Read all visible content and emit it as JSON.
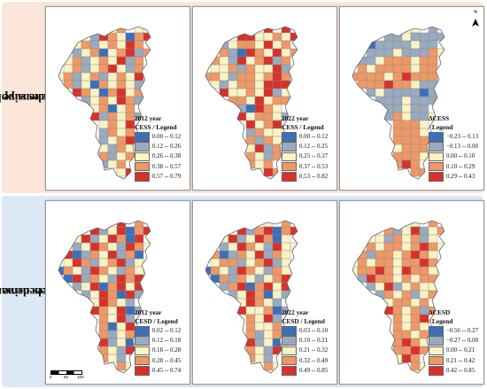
{
  "rows": [
    {
      "label_line1": "Comprehensive ecosystem",
      "label_line2": "services supply"
    },
    {
      "label_line1": "Comprehensive ecosystem",
      "label_line2": "services demand"
    }
  ],
  "panels": [
    {
      "legend_line1": "2012 year",
      "legend_line2": "CESS / Legend",
      "ranges": [
        "0.00 -- 0.12",
        "0.12 -- 0.26",
        "0.26 -- 0.38",
        "0.38 -- 0.57",
        "0.57 -- 0.79"
      ],
      "colors": [
        "#3a6fbd",
        "#9aaabf",
        "#fbf3c4",
        "#ef9866",
        "#d93129"
      ],
      "classes": [
        3,
        2,
        1,
        4,
        3,
        2,
        0,
        3,
        4,
        2,
        3,
        1,
        2,
        3,
        2,
        4,
        3,
        1,
        2,
        3,
        0,
        2,
        3,
        4,
        1,
        3,
        2,
        3,
        1,
        2,
        3,
        2,
        4,
        1,
        3,
        2,
        3,
        1,
        2,
        3,
        4,
        2,
        1,
        3,
        2,
        3,
        1,
        2,
        3,
        1,
        2,
        3,
        2,
        4,
        3,
        1,
        2,
        0,
        3,
        2
      ]
    },
    {
      "legend_line1": "2022 year",
      "legend_line2": "CESS / Legend",
      "ranges": [
        "0.00 -- 0.12",
        "0.12 -- 0.25",
        "0.25 -- 0.37",
        "0.37 -- 0.53",
        "0.53 -- 0.82"
      ],
      "colors": [
        "#3a6fbd",
        "#9aaabf",
        "#fbf3c4",
        "#ef9866",
        "#d93129"
      ],
      "classes": [
        4,
        4,
        4,
        4,
        2,
        2,
        3,
        2,
        4,
        1,
        2,
        3,
        3,
        2,
        4,
        2,
        3,
        3,
        1,
        0,
        4,
        3,
        2,
        4,
        2,
        3,
        3,
        2,
        1,
        4,
        2,
        3,
        4,
        1,
        3,
        2,
        2,
        3,
        1,
        3,
        2,
        2,
        4,
        1,
        3,
        3,
        2,
        1,
        3,
        3,
        2,
        3,
        4,
        3,
        2,
        1,
        2,
        3,
        3,
        2
      ]
    },
    {
      "legend_line1": "ΔCESS",
      "legend_line2": "/ Legend",
      "ranges": [
        "−0.23 -- 0.13",
        "−0.13 -- 0.00",
        "0.00 -- 0.10",
        "0.10 -- 0.29",
        "0.29 -- 0.43"
      ],
      "colors": [
        "#3a6fbd",
        "#9aaabf",
        "#fbf3c4",
        "#ef9866",
        "#d93129"
      ],
      "classes": [
        2,
        1,
        1,
        1,
        2,
        1,
        1,
        1,
        1,
        0,
        1,
        1,
        1,
        1,
        2,
        1,
        1,
        1,
        1,
        1,
        2,
        1,
        1,
        1,
        3,
        2,
        1,
        1,
        2,
        3,
        3,
        3,
        2,
        3,
        3,
        3,
        2,
        3,
        3,
        3,
        3,
        2,
        3,
        3,
        3,
        3,
        3,
        3,
        2,
        3,
        4,
        3,
        3,
        3,
        3,
        3,
        3,
        4,
        3,
        3
      ]
    },
    {
      "legend_line1": "2012 year",
      "legend_line2": "CESD / Legend",
      "ranges": [
        "0.02 -- 0.12",
        "0.12 -- 0.18",
        "0.18 -- 0.28",
        "0.28 -- 0.45",
        "0.45 -- 0.74"
      ],
      "colors": [
        "#3a6fbd",
        "#9aaabf",
        "#fbf3c4",
        "#ef9866",
        "#d93129"
      ],
      "classes": [
        4,
        3,
        4,
        1,
        2,
        4,
        0,
        3,
        4,
        2,
        4,
        1,
        2,
        4,
        3,
        0,
        4,
        1,
        2,
        4,
        3,
        2,
        1,
        4,
        3,
        2,
        4,
        0,
        1,
        3,
        2,
        4,
        1,
        3,
        0,
        2,
        4,
        3,
        1,
        2,
        3,
        4,
        1,
        2,
        0,
        3,
        2,
        1,
        4,
        3,
        2,
        1,
        3,
        2,
        0,
        4,
        1,
        3,
        2,
        1
      ]
    },
    {
      "legend_line1": "2022 year",
      "legend_line2": "CESD / Legend",
      "ranges": [
        "0.03 -- 0.10",
        "0.10 -- 0.21",
        "0.21 -- 0.32",
        "0.32 -- 0.49",
        "0.49 -- 0.85"
      ],
      "colors": [
        "#3a6fbd",
        "#9aaabf",
        "#fbf3c4",
        "#ef9866",
        "#d93129"
      ],
      "classes": [
        2,
        3,
        4,
        1,
        3,
        4,
        0,
        3,
        4,
        2,
        4,
        1,
        2,
        4,
        3,
        0,
        2,
        1,
        2,
        4,
        3,
        2,
        1,
        4,
        2,
        2,
        3,
        0,
        1,
        3,
        2,
        4,
        1,
        3,
        2,
        2,
        3,
        3,
        1,
        2,
        3,
        4,
        1,
        2,
        0,
        3,
        2,
        1,
        4,
        3,
        2,
        1,
        3,
        2,
        0,
        3,
        1,
        3,
        2,
        1
      ]
    },
    {
      "legend_line1": "ΔCESD",
      "legend_line2": "/ Legend",
      "ranges": [
        "−0.56 -- 0.27",
        "−0.27 -- 0.00",
        "0.00 -- 0.21",
        "0.21 -- 0.42",
        "0.42 -- 0.85"
      ],
      "colors": [
        "#3a6fbd",
        "#9aaabf",
        "#fbf3c4",
        "#ef9866",
        "#d93129"
      ],
      "classes": [
        2,
        3,
        3,
        1,
        2,
        4,
        1,
        2,
        3,
        2,
        2,
        1,
        3,
        2,
        3,
        1,
        2,
        3,
        2,
        3,
        3,
        2,
        3,
        4,
        3,
        2,
        3,
        1,
        3,
        3,
        2,
        3,
        4,
        3,
        2,
        3,
        2,
        3,
        3,
        2,
        3,
        3,
        4,
        3,
        2,
        3,
        3,
        4,
        3,
        2,
        4,
        3,
        3,
        2,
        1,
        4,
        3,
        3,
        2,
        3
      ]
    }
  ],
  "scale_bar": {
    "ticks": [
      "0",
      "50",
      "100"
    ]
  },
  "north_arrow": {
    "label": "N",
    "icon": "north-arrow-icon"
  }
}
